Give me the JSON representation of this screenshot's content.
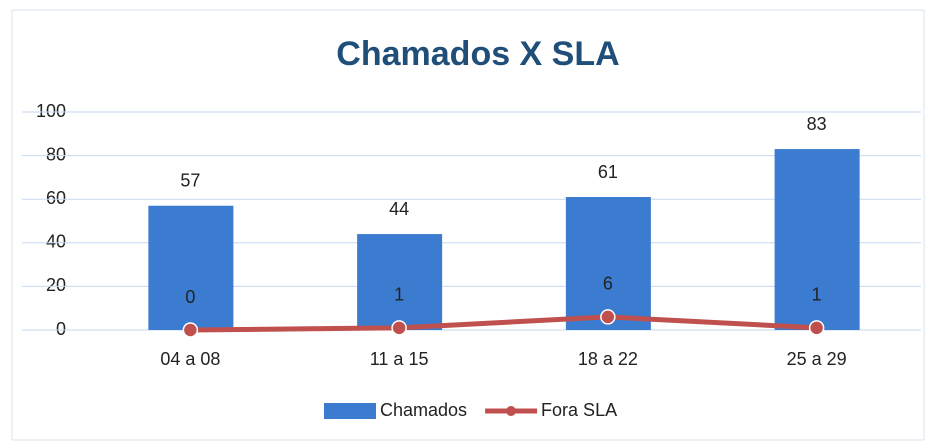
{
  "chart_data": {
    "type": "bar",
    "title": "Chamados X SLA",
    "categories": [
      "04 a 08",
      "11 a 15",
      "18 a 22",
      "25 a 29"
    ],
    "series": [
      {
        "name": "Chamados",
        "type": "bar",
        "color": "#3b7bd0",
        "values": [
          57,
          44,
          61,
          83
        ]
      },
      {
        "name": "Fora SLA",
        "type": "line",
        "color": "#c0504d",
        "values": [
          0,
          1,
          6,
          1
        ]
      }
    ],
    "ylim": [
      0,
      100
    ],
    "yticks": [
      0,
      20,
      40,
      60,
      80,
      100
    ],
    "grid": true,
    "legend": "bottom"
  }
}
